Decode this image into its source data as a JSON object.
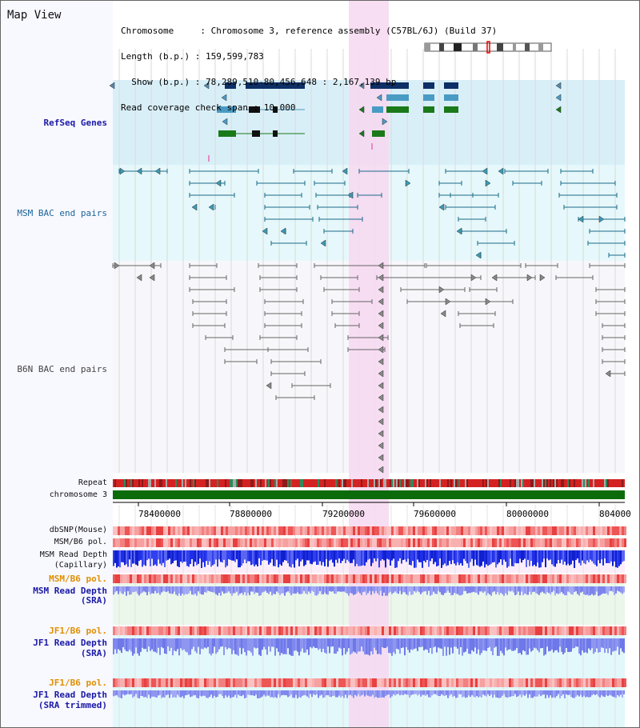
{
  "app": {
    "title": "Map View"
  },
  "info": {
    "chromosome": "Chromosome     : Chromosome 3, reference assembly (C57BL/6J) (Build 37)",
    "length": "Length (b.p.) : 159,599,783",
    "show": "  Show (b.p.) : 78,289,510-80,456,648 : 2,167,139 bp",
    "span": "Read coverage check span : 10,000"
  },
  "tracks": {
    "refseq": "RefSeq Genes",
    "msm_bac": "MSM BAC end pairs",
    "b6n_bac": "B6N BAC end pairs",
    "repeat": "Repeat",
    "chromosome": "chromosome 3",
    "dbsnp": "dbSNP(Mouse)",
    "msm_b6_pol": "MSM/B6 pol.",
    "msm_depth_cap_1": "MSM Read Depth",
    "msm_depth_cap_2": "(Capillary)",
    "msm_b6_pol_2": "MSM/B6 pol.",
    "msm_depth_sra_1": "MSM Read Depth",
    "msm_depth_sra_2": "(SRA)",
    "jf1_b6_pol": "JF1/B6 pol.",
    "jf1_depth_1": "JF1 Read Depth",
    "jf1_depth_2": "(SRA)",
    "jf1_b6_pol_2": "JF1/B6 pol.",
    "jf1_trim_1": "JF1 Read Depth",
    "jf1_trim_2": "(SRA trimmed)"
  },
  "axis": {
    "ticks": [
      "78400000",
      "78800000",
      "79200000",
      "79600000",
      "80000000",
      "804000"
    ]
  },
  "colors": {
    "refseq_bg": "#d9eff8",
    "msm_bg": "#e6f8fb",
    "highlight": "#f7d8f0",
    "gene_navy": "#0d2f66",
    "gene_blue": "#4a9bc4",
    "gene_green": "#1a7a1a",
    "chromosome": "#0b6b0b",
    "msm_bac": "#1a6a8a",
    "b6n_bac": "#555555",
    "depth_dark": "#1f2be0",
    "depth_light": "#8f96f0",
    "pol_red": "#ee4444"
  }
}
